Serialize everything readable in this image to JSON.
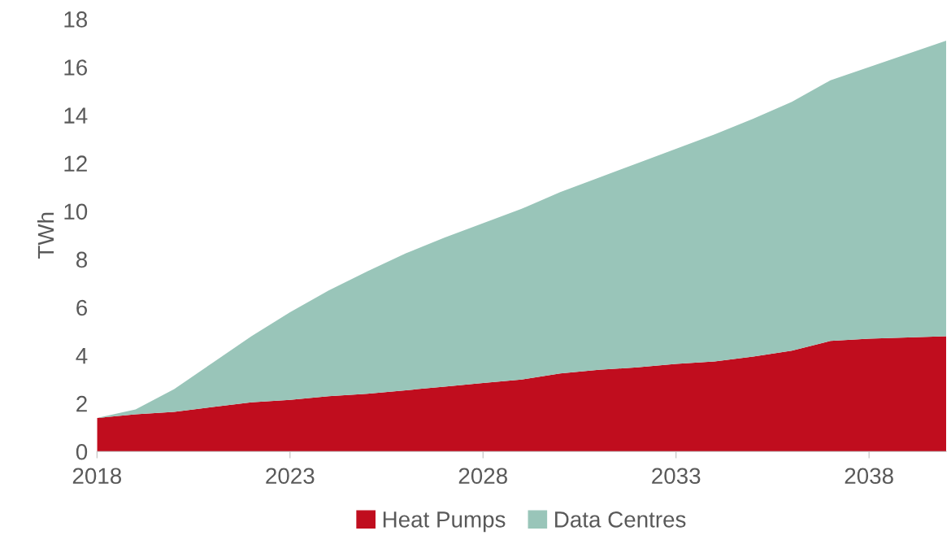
{
  "chart_data": {
    "type": "area",
    "stacked": true,
    "ylabel": "TWh",
    "x": [
      2018,
      2019,
      2020,
      2021,
      2022,
      2023,
      2024,
      2025,
      2026,
      2027,
      2028,
      2029,
      2030,
      2031,
      2032,
      2033,
      2034,
      2035,
      2036,
      2037,
      2038,
      2039,
      2040
    ],
    "series": [
      {
        "name": "Heat Pumps",
        "color": "#c00d1e",
        "values": [
          1.4,
          1.55,
          1.65,
          1.85,
          2.05,
          2.15,
          2.3,
          2.4,
          2.55,
          2.7,
          2.85,
          3.0,
          3.25,
          3.4,
          3.5,
          3.65,
          3.75,
          3.95,
          4.2,
          4.6,
          4.7,
          4.75,
          4.8
        ]
      },
      {
        "name": "Data Centres",
        "color": "#99c5b9",
        "values": [
          0,
          0.2,
          0.95,
          1.85,
          2.75,
          3.65,
          4.4,
          5.1,
          5.7,
          6.2,
          6.65,
          7.1,
          7.55,
          8.0,
          8.5,
          8.95,
          9.45,
          9.9,
          10.35,
          10.85,
          11.3,
          11.8,
          12.3
        ]
      }
    ],
    "xlim": [
      2018,
      2040
    ],
    "xticks": [
      2018,
      2023,
      2028,
      2033,
      2038
    ],
    "ylim": [
      0,
      18
    ],
    "yticks": [
      0,
      2,
      4,
      6,
      8,
      10,
      12,
      14,
      16,
      18
    ],
    "grid": false,
    "legend": "bottom"
  }
}
